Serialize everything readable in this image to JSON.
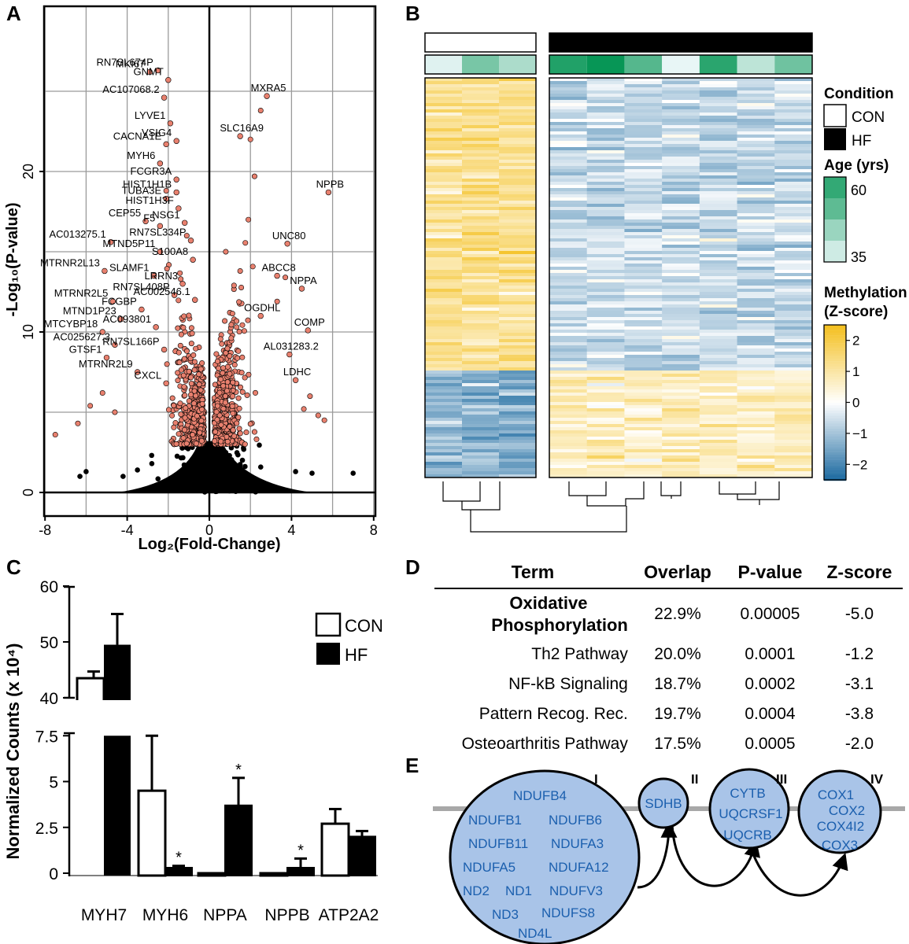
{
  "panels": {
    "a": "A",
    "b": "B",
    "c": "C",
    "d": "D",
    "e": "E"
  },
  "chart_data": [
    {
      "type": "scatter",
      "panel": "A",
      "title": "",
      "xlabel": "Log₂(Fold-Change)",
      "ylabel": "-Log₁₀(P-value)",
      "xlim": [
        -8,
        8
      ],
      "ylim": [
        -0.5,
        27
      ],
      "xticks": [
        "-8",
        "-4",
        "0",
        "4",
        "8"
      ],
      "yticks": [
        "0",
        "10",
        "20"
      ],
      "grid": true,
      "colors": {
        "significant": "#e8806e",
        "nonsignificant": "#000000"
      },
      "labeled_points": [
        {
          "label": "MKI67",
          "x": -2.9,
          "y": 26.2
        },
        {
          "label": "RN7SL674P",
          "x": -2.5,
          "y": 26.3
        },
        {
          "label": "GNMT",
          "x": -2.0,
          "y": 25.7
        },
        {
          "label": "AC107068.2",
          "x": -2.2,
          "y": 24.6
        },
        {
          "label": "LYVE1",
          "x": -1.9,
          "y": 23.0
        },
        {
          "label": "CACNA1E",
          "x": -2.1,
          "y": 21.7
        },
        {
          "label": "VSIG4",
          "x": -1.6,
          "y": 21.9
        },
        {
          "label": "MYH6",
          "x": -2.4,
          "y": 20.5
        },
        {
          "label": "FCGR3A",
          "x": -1.6,
          "y": 19.5
        },
        {
          "label": "HIST1H1B",
          "x": -1.6,
          "y": 18.7
        },
        {
          "label": "TUBA3E",
          "x": -2.1,
          "y": 18.3
        },
        {
          "label": "HIST1H3F",
          "x": -1.5,
          "y": 17.7
        },
        {
          "label": "CEP55",
          "x": -3.1,
          "y": 16.9
        },
        {
          "label": "F5",
          "x": -2.4,
          "y": 16.6
        },
        {
          "label": "NSG1",
          "x": -1.2,
          "y": 16.8
        },
        {
          "label": "AC013275.1",
          "x": -4.8,
          "y": 15.6
        },
        {
          "label": "RN7SL334P",
          "x": -0.9,
          "y": 15.7
        },
        {
          "label": "MTND5P11",
          "x": -2.4,
          "y": 15.0
        },
        {
          "label": "S100A8",
          "x": -0.8,
          "y": 14.5
        },
        {
          "label": "SLAMF1",
          "x": -2.7,
          "y": 13.5
        },
        {
          "label": "LRRN3",
          "x": -1.3,
          "y": 13.0
        },
        {
          "label": "MTRNR2L13",
          "x": -5.1,
          "y": 13.8
        },
        {
          "label": "RN7SL408P",
          "x": -1.7,
          "y": 12.3
        },
        {
          "label": "AC002546.1",
          "x": -0.7,
          "y": 12.0
        },
        {
          "label": "MTRNR2L5",
          "x": -4.7,
          "y": 11.9
        },
        {
          "label": "FCGBP",
          "x": -3.3,
          "y": 11.4
        },
        {
          "label": "MTND1P23",
          "x": -4.3,
          "y": 10.8
        },
        {
          "label": "AC093801",
          "x": -2.6,
          "y": 10.3
        },
        {
          "label": "MTCYBP18",
          "x": -5.2,
          "y": 10.0
        },
        {
          "label": "AC025627.3",
          "x": -4.6,
          "y": 9.2
        },
        {
          "label": "RN7SL166P",
          "x": -2.2,
          "y": 8.9
        },
        {
          "label": "GTSF1",
          "x": -5.0,
          "y": 8.4
        },
        {
          "label": "MTRNR2L9",
          "x": -3.5,
          "y": 7.5
        },
        {
          "label": "CXCL",
          "x": -2.1,
          "y": 6.8
        },
        {
          "label": "MXRA5",
          "x": 2.8,
          "y": 24.7
        },
        {
          "label": "SLC16A9",
          "x": 1.5,
          "y": 22.2
        },
        {
          "label": "NPPB",
          "x": 5.8,
          "y": 18.7
        },
        {
          "label": "UNC80",
          "x": 3.8,
          "y": 15.5
        },
        {
          "label": "ABCC8",
          "x": 3.3,
          "y": 13.5
        },
        {
          "label": "NPPA",
          "x": 4.5,
          "y": 12.7
        },
        {
          "label": "OGDHL",
          "x": 2.5,
          "y": 11.0
        },
        {
          "label": "COMP",
          "x": 4.8,
          "y": 10.1
        },
        {
          "label": "AL031283.2",
          "x": 3.9,
          "y": 8.6
        },
        {
          "label": "LDHC",
          "x": 4.2,
          "y": 7.0
        }
      ]
    },
    {
      "type": "heatmap",
      "panel": "B",
      "groups": [
        {
          "name": "CON",
          "samples": 3,
          "ages": [
            36,
            48,
            42
          ]
        },
        {
          "name": "HF",
          "samples": 7,
          "ages": [
            58,
            61,
            52,
            35,
            57,
            40,
            49
          ]
        }
      ],
      "legend": {
        "condition_title": "Condition",
        "condition_items": [
          "CON",
          "HF"
        ],
        "age_title": "Age (yrs)",
        "age_ticks": [
          "60",
          "35"
        ],
        "methylation_title": [
          "Methylation",
          "(Z-score)"
        ],
        "methylation_ticks": [
          "2",
          "1",
          "0",
          "−1",
          "−2"
        ]
      },
      "colors": {
        "high": "#f4c020",
        "mid": "#ffffff",
        "low": "#1c6aa0",
        "age_low": "#e8f6f6",
        "age_high": "#109a5c"
      }
    },
    {
      "type": "bar",
      "panel": "C",
      "ylabel": "Normalized Counts (x 10⁴)",
      "categories": [
        "MYH7",
        "MYH6",
        "NPPA",
        "NPPB",
        "ATP2A2"
      ],
      "series": [
        {
          "name": "CON",
          "values": [
            43.5,
            4.5,
            0.0,
            0.0,
            2.7
          ],
          "errors": [
            1.2,
            3.1,
            0.0,
            0.0,
            0.8
          ]
        },
        {
          "name": "HF",
          "values": [
            49.5,
            0.3,
            3.7,
            0.3,
            2.0
          ],
          "errors": [
            5.5,
            0.1,
            1.5,
            0.5,
            0.3
          ]
        }
      ],
      "significant": [
        "MYH6",
        "NPPA",
        "NPPB"
      ],
      "significance_mark": "*",
      "broken_axis": {
        "lower_ylim": [
          0,
          7.5
        ],
        "upper_ylim": [
          40,
          60
        ]
      },
      "yticks_upper": [
        "60",
        "50",
        "40"
      ],
      "yticks_lower": [
        "7.5",
        "5",
        "2.5",
        "0"
      ],
      "legend": [
        "CON",
        "HF"
      ]
    },
    {
      "type": "table",
      "panel": "D",
      "columns": [
        "Term",
        "Overlap",
        "P-value",
        "Z-score"
      ],
      "rows": [
        {
          "term_line1": "Oxidative",
          "term_line2": "Phosphorylation",
          "overlap": "22.9%",
          "pvalue": "0.00005",
          "zscore": "-5.0"
        },
        {
          "term": "Th2 Pathway",
          "overlap": "20.0%",
          "pvalue": "0.0001",
          "zscore": "-1.2"
        },
        {
          "term": "NF-kB Signaling",
          "overlap": "18.7%",
          "pvalue": "0.0002",
          "zscore": "-3.1"
        },
        {
          "term": "Pattern Recog. Rec.",
          "overlap": "19.7%",
          "pvalue": "0.0004",
          "zscore": "-3.8"
        },
        {
          "term": "Osteoarthritis Pathway",
          "overlap": "17.5%",
          "pvalue": "0.0005",
          "zscore": "-2.0"
        }
      ]
    }
  ],
  "complexes": {
    "complex1": {
      "numeral": "I",
      "genes": [
        "NDUFB4",
        "NDUFB1",
        "NDUFB6",
        "NDUFB11",
        "NDUFA3",
        "NDUFA5",
        "NDUFA12",
        "ND2",
        "ND1",
        "NDUFV3",
        "ND3",
        "NDUFS8",
        "ND4L"
      ]
    },
    "complex2": {
      "numeral": "II",
      "genes": [
        "SDHB"
      ]
    },
    "complex3": {
      "numeral": "III",
      "genes": [
        "CYTB",
        "UQCRSF1",
        "UQCRB"
      ]
    },
    "complex4": {
      "numeral": "IV",
      "genes": [
        "COX1",
        "COX2",
        "COX4I2",
        "COX3"
      ]
    },
    "colors": {
      "fill": "#a9c4e8",
      "text": "#1b5fae",
      "membrane": "#a8a8a8"
    }
  }
}
